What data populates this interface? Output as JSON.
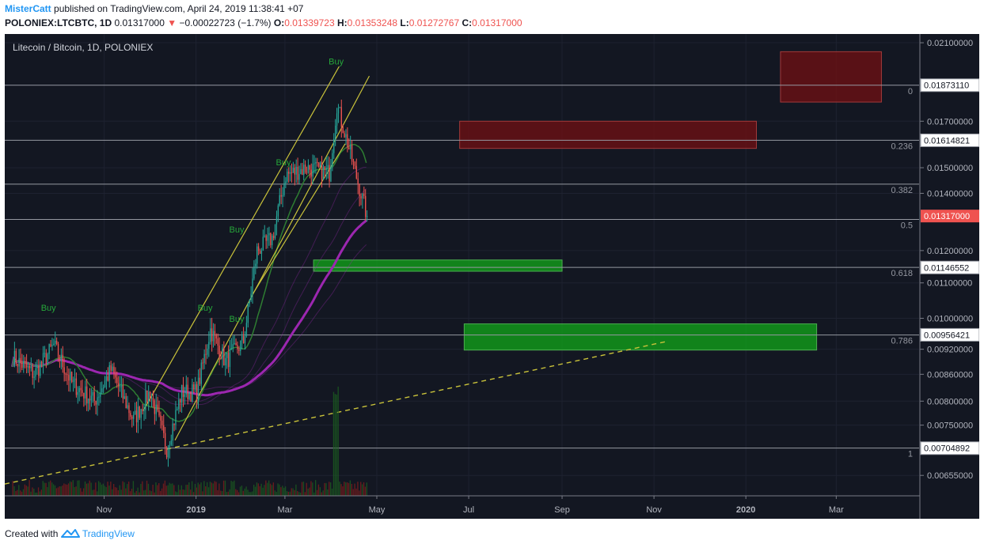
{
  "header": {
    "author": "MisterCatt",
    "published_text": "published on TradingView.com, April 24, 2019 11:38:41 +07",
    "symbol": "POLONIEX:LTCBTC, 1D",
    "last": "0.01317000",
    "change": "−0.00022723 (−1.7%)",
    "o_label": "O:",
    "o_value": "0.01339723",
    "h_label": "H:",
    "h_value": "0.01353248",
    "l_label": "L:",
    "l_value": "0.01272767",
    "c_label": "C:",
    "c_value": "0.01317000"
  },
  "footer": {
    "created_with": "Created with",
    "brand": "TradingView"
  },
  "colors": {
    "background": "#131722",
    "up": "#26a69a",
    "down": "#ef5350",
    "ma": "#9c27b0",
    "channel": "#c9c23a"
  },
  "chart_data": {
    "type": "candlestick",
    "title": "Litecoin / Bitcoin, 1D, POLONIEX",
    "y_scale": "log",
    "ylim": [
      0.0062,
      0.0215
    ],
    "x_tick_labels": [
      "Nov",
      "2019",
      "Mar",
      "May",
      "Jul",
      "Sep",
      "Nov",
      "2020",
      "Mar"
    ],
    "y_tick_labels": [
      "0.02100000",
      "0.01700000",
      "0.01500000",
      "0.01400000",
      "0.01200000",
      "0.01100000",
      "0.01000000",
      "0.00920000",
      "0.00860000",
      "0.00800000",
      "0.00750000",
      "0.00655000"
    ],
    "y_tick_values": [
      0.021,
      0.017,
      0.015,
      0.014,
      0.012,
      0.011,
      0.01,
      0.0092,
      0.0086,
      0.008,
      0.0075,
      0.00655
    ],
    "price_labels": [
      {
        "value": 0.0187311,
        "text": "0.01873110"
      },
      {
        "value": 0.01614821,
        "text": "0.01614821"
      },
      {
        "value": 0.01146552,
        "text": "0.01146552"
      },
      {
        "value": 0.00956421,
        "text": "0.00956421"
      },
      {
        "value": 0.00704892,
        "text": "0.00704892"
      }
    ],
    "last_price": {
      "value": 0.01317,
      "text": "0.01317000"
    },
    "fib_levels": [
      {
        "ratio": "0",
        "value": 0.01873
      },
      {
        "ratio": "0.236",
        "value": 0.01615
      },
      {
        "ratio": "0.382",
        "value": 0.01435
      },
      {
        "ratio": "0.5",
        "value": 0.01305
      },
      {
        "ratio": "0.618",
        "value": 0.01147
      },
      {
        "ratio": "0.786",
        "value": 0.00956
      },
      {
        "ratio": "1",
        "value": 0.00705
      }
    ],
    "signals": [
      {
        "text": "Buy",
        "date": "2018-09-25",
        "value": 0.0102
      },
      {
        "text": "Buy",
        "date": "2019-01-07",
        "value": 0.0102
      },
      {
        "text": "Buy",
        "date": "2019-01-28",
        "value": 0.0126
      },
      {
        "text": "Buy",
        "date": "2019-01-28",
        "value": 0.0099
      },
      {
        "text": "Buy",
        "date": "2019-02-28",
        "value": 0.0151
      },
      {
        "text": "Buy",
        "date": "2019-04-04",
        "value": 0.0198
      }
    ],
    "resistance_zones": [
      {
        "x1": "2019-06-25",
        "x2": "2020-01-08",
        "y1": 0.0158,
        "y2": 0.017
      },
      {
        "x1": "2020-01-24",
        "x2": "2020-03-31",
        "y1": 0.0179,
        "y2": 0.0205
      }
    ],
    "support_zones": [
      {
        "x1": "2019-03-20",
        "x2": "2019-09-01",
        "y1": 0.01135,
        "y2": 0.0117
      },
      {
        "x1": "2019-06-28",
        "x2": "2020-02-17",
        "y1": 0.00918,
        "y2": 0.00985
      }
    ],
    "close_path": [
      {
        "date": "2018-09-01",
        "close": 0.009
      },
      {
        "date": "2018-09-15",
        "close": 0.0086
      },
      {
        "date": "2018-09-28",
        "close": 0.0093
      },
      {
        "date": "2018-10-10",
        "close": 0.0084
      },
      {
        "date": "2018-10-25",
        "close": 0.008
      },
      {
        "date": "2018-11-05",
        "close": 0.0087
      },
      {
        "date": "2018-11-20",
        "close": 0.0076
      },
      {
        "date": "2018-12-01",
        "close": 0.0082
      },
      {
        "date": "2018-12-12",
        "close": 0.00705
      },
      {
        "date": "2018-12-22",
        "close": 0.0082
      },
      {
        "date": "2019-01-01",
        "close": 0.0082
      },
      {
        "date": "2019-01-10",
        "close": 0.0097
      },
      {
        "date": "2019-01-20",
        "close": 0.0089
      },
      {
        "date": "2019-02-01",
        "close": 0.0094
      },
      {
        "date": "2019-02-10",
        "close": 0.012
      },
      {
        "date": "2019-02-20",
        "close": 0.0124
      },
      {
        "date": "2019-03-01",
        "close": 0.0147
      },
      {
        "date": "2019-03-15",
        "close": 0.015
      },
      {
        "date": "2019-03-30",
        "close": 0.0148
      },
      {
        "date": "2019-04-04",
        "close": 0.0178
      },
      {
        "date": "2019-04-12",
        "close": 0.0158
      },
      {
        "date": "2019-04-24",
        "close": 0.01317
      }
    ]
  }
}
